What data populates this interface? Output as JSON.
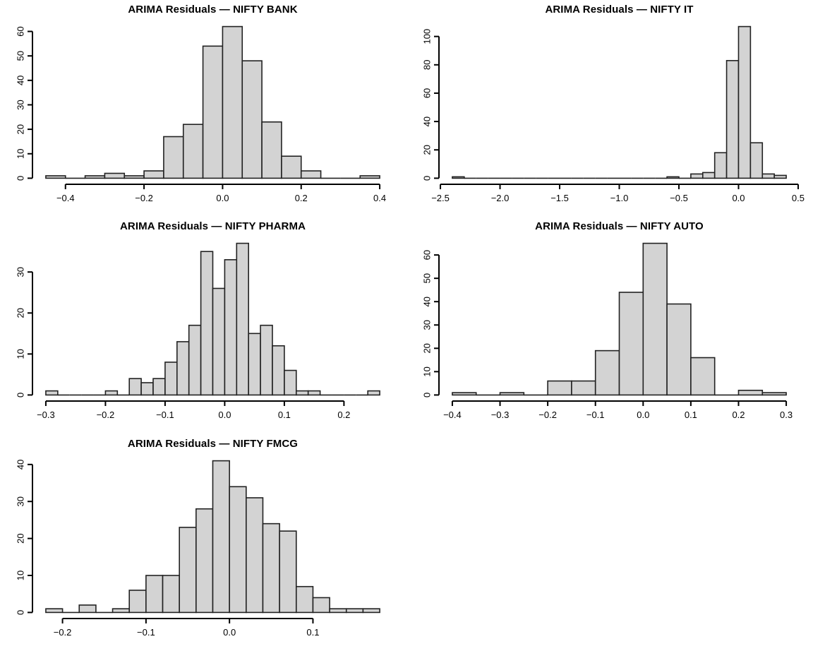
{
  "style": {
    "background": "#ffffff",
    "bar_fill": "#d3d3d3",
    "bar_stroke": "#222222",
    "axis_color": "#000000",
    "text_color": "#000000"
  },
  "chart_data": [
    {
      "type": "bar",
      "subtype": "histogram",
      "title": "ARIMA Residuals — NIFTY BANK",
      "xlabel": "",
      "ylabel": "",
      "grid": false,
      "bins": {
        "start": -0.45,
        "width": 0.05
      },
      "counts": [
        1,
        0,
        1,
        2,
        1,
        3,
        17,
        22,
        54,
        62,
        48,
        23,
        9,
        3,
        0,
        0,
        1
      ],
      "xlim": [
        -0.45,
        0.4
      ],
      "ylim": [
        0,
        62
      ],
      "x_ticks": {
        "values": [
          -0.4,
          -0.2,
          0.0,
          0.2,
          0.4
        ],
        "labels": [
          "−0.4",
          "−0.2",
          "0.0",
          "0.2",
          "0.4"
        ]
      },
      "y_ticks": {
        "values": [
          0,
          10,
          20,
          30,
          40,
          50,
          60
        ],
        "labels": [
          "0",
          "10",
          "20",
          "30",
          "40",
          "50",
          "60"
        ]
      }
    },
    {
      "type": "bar",
      "subtype": "histogram",
      "title": "ARIMA Residuals — NIFTY IT",
      "xlabel": "",
      "ylabel": "",
      "grid": false,
      "bins": {
        "start": -2.4,
        "width": 0.1
      },
      "counts": [
        1,
        0,
        0,
        0,
        0,
        0,
        0,
        0,
        0,
        0,
        0,
        0,
        0,
        0,
        0,
        0,
        0,
        0,
        1,
        0,
        3,
        4,
        18,
        83,
        107,
        25,
        3,
        2
      ],
      "xlim": [
        -2.4,
        0.4
      ],
      "ylim": [
        0,
        107
      ],
      "x_ticks": {
        "values": [
          -2.5,
          -2.0,
          -1.5,
          -1.0,
          -0.5,
          0.0,
          0.5
        ],
        "labels": [
          "−2.5",
          "−2.0",
          "−1.5",
          "−1.0",
          "−0.5",
          "0.0",
          "0.5"
        ]
      },
      "y_ticks": {
        "values": [
          0,
          20,
          40,
          60,
          80,
          100
        ],
        "labels": [
          "0",
          "20",
          "40",
          "60",
          "80",
          "100"
        ]
      }
    },
    {
      "type": "bar",
      "subtype": "histogram",
      "title": "ARIMA Residuals — NIFTY PHARMA",
      "xlabel": "",
      "ylabel": "",
      "grid": false,
      "bins": {
        "start": -0.3,
        "width": 0.02
      },
      "counts": [
        1,
        0,
        0,
        0,
        0,
        1,
        0,
        4,
        3,
        4,
        8,
        13,
        17,
        35,
        26,
        33,
        37,
        15,
        17,
        12,
        6,
        1,
        1,
        0,
        0,
        0,
        0,
        1
      ],
      "xlim": [
        -0.3,
        0.26
      ],
      "ylim": [
        0,
        37
      ],
      "x_ticks": {
        "values": [
          -0.3,
          -0.2,
          -0.1,
          0.0,
          0.1,
          0.2
        ],
        "labels": [
          "−0.3",
          "−0.2",
          "−0.1",
          "0.0",
          "0.1",
          "0.2"
        ]
      },
      "y_ticks": {
        "values": [
          0,
          10,
          20,
          30
        ],
        "labels": [
          "0",
          "10",
          "20",
          "30"
        ]
      }
    },
    {
      "type": "bar",
      "subtype": "histogram",
      "title": "ARIMA Residuals — NIFTY AUTO",
      "xlabel": "",
      "ylabel": "",
      "grid": false,
      "bins": {
        "start": -0.4,
        "width": 0.05
      },
      "counts": [
        1,
        0,
        1,
        0,
        6,
        6,
        19,
        44,
        65,
        39,
        16,
        0,
        2,
        1
      ],
      "xlim": [
        -0.4,
        0.3
      ],
      "ylim": [
        0,
        65
      ],
      "x_ticks": {
        "values": [
          -0.4,
          -0.3,
          -0.2,
          -0.1,
          0.0,
          0.1,
          0.2,
          0.3
        ],
        "labels": [
          "−0.4",
          "−0.3",
          "−0.2",
          "−0.1",
          "0.0",
          "0.1",
          "0.2",
          "0.3"
        ]
      },
      "y_ticks": {
        "values": [
          0,
          10,
          20,
          30,
          40,
          50,
          60
        ],
        "labels": [
          "0",
          "10",
          "20",
          "30",
          "40",
          "50",
          "60"
        ]
      }
    },
    {
      "type": "bar",
      "subtype": "histogram",
      "title": "ARIMA Residuals — NIFTY FMCG",
      "xlabel": "",
      "ylabel": "",
      "grid": false,
      "bins": {
        "start": -0.22,
        "width": 0.02
      },
      "counts": [
        1,
        0,
        2,
        0,
        1,
        6,
        10,
        10,
        23,
        28,
        41,
        34,
        31,
        24,
        22,
        7,
        4,
        1,
        1,
        1
      ],
      "xlim": [
        -0.22,
        0.18
      ],
      "ylim": [
        0,
        41
      ],
      "x_ticks": {
        "values": [
          -0.2,
          -0.1,
          0.0,
          0.1
        ],
        "labels": [
          "−0.2",
          "−0.1",
          "0.0",
          "0.1"
        ]
      },
      "y_ticks": {
        "values": [
          0,
          10,
          20,
          30,
          40
        ],
        "labels": [
          "0",
          "10",
          "20",
          "30",
          "40"
        ]
      }
    }
  ]
}
